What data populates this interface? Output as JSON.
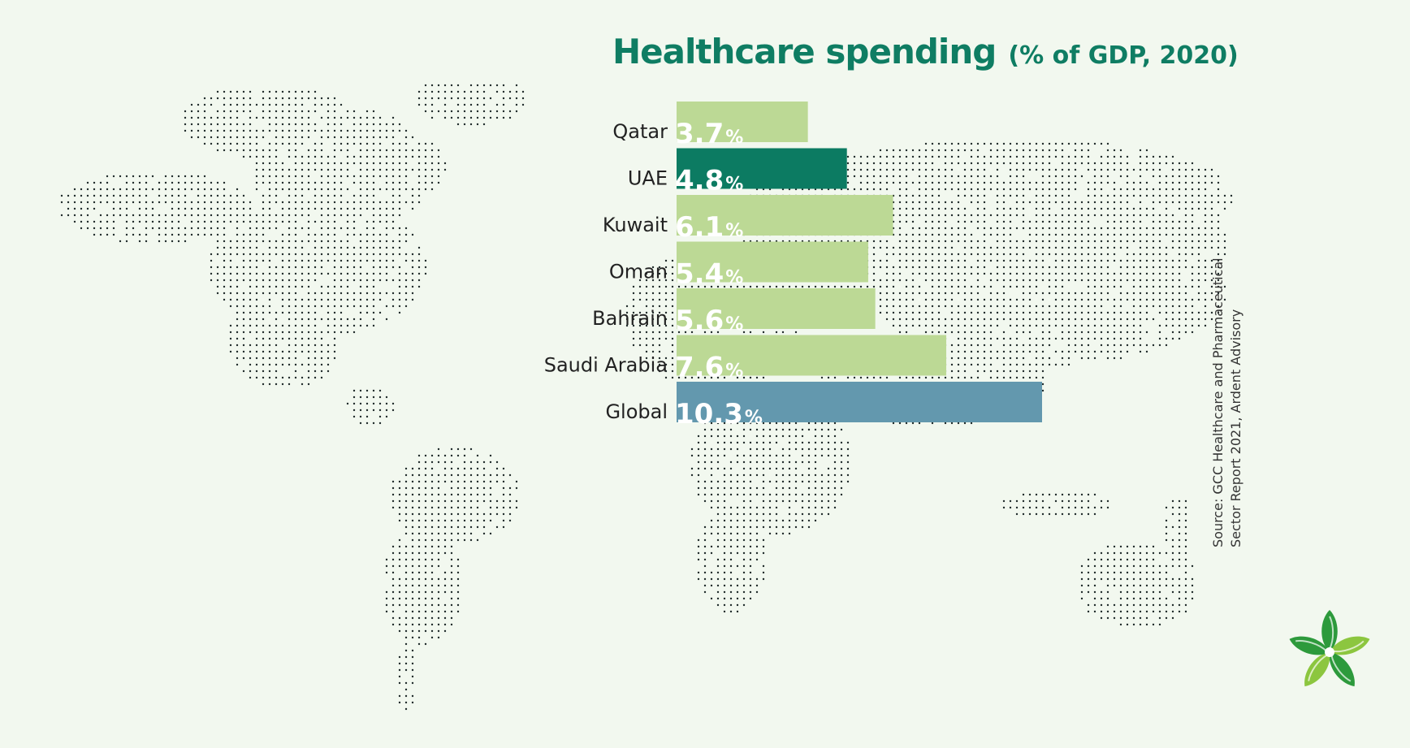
{
  "colors": {
    "background": "#f2f8ef",
    "title": "#0f7d63",
    "bar_default": "#bcd995",
    "bar_uae": "#0c7b62",
    "bar_global": "#6398ae",
    "map_dots": "#1f2a2a",
    "logo_green": "#2d9a3c",
    "logo_light": "#8cc63f"
  },
  "chart_data": {
    "type": "bar",
    "orientation": "horizontal",
    "title": "Healthcare spending",
    "subtitle": "(% of GDP, 2020)",
    "categories": [
      "Qatar",
      "UAE",
      "Kuwait",
      "Oman",
      "Bahrain",
      "Saudi Arabia",
      "Global"
    ],
    "values": [
      3.7,
      4.8,
      6.1,
      5.4,
      5.6,
      7.6,
      10.3
    ],
    "value_labels": [
      "3.7",
      "4.8",
      "6.1",
      "5.4",
      "5.6",
      "7.6",
      "10.3"
    ],
    "value_unit": "%",
    "bar_colors": [
      "#bcd995",
      "#0c7b62",
      "#bcd995",
      "#bcd995",
      "#bcd995",
      "#bcd995",
      "#6398ae"
    ],
    "xlim": [
      0,
      10.3
    ],
    "grid": false,
    "legend": "none"
  },
  "source_lines": [
    "Source: GCC Healthcare and Pharmaceutical",
    "Sector Report 2021, Ardent Advisory"
  ],
  "decor": {
    "background_map": "dotted-world-map",
    "logo": "green-star-flower-logo"
  }
}
